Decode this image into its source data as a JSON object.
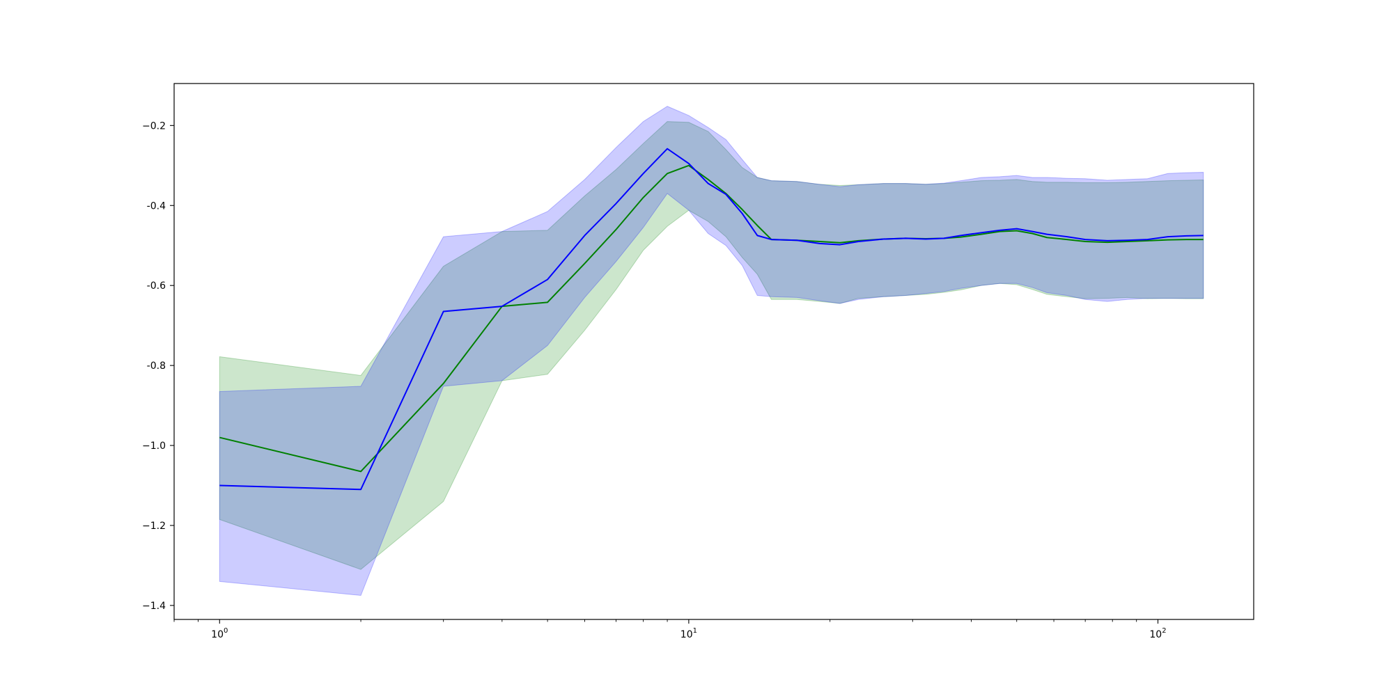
{
  "chart_data": {
    "type": "line",
    "title": "",
    "xlabel": "",
    "ylabel": "",
    "x_scale": "log",
    "xlim": [
      0.8,
      160
    ],
    "ylim": [
      -1.435,
      -0.095
    ],
    "grid": false,
    "legend": null,
    "x_ticks": [
      {
        "value": 1,
        "base": "10",
        "exp": "0"
      },
      {
        "value": 10,
        "base": "10",
        "exp": "1"
      },
      {
        "value": 100,
        "base": "10",
        "exp": "2"
      }
    ],
    "y_ticks": [
      {
        "value": -0.2,
        "label": "−0.2"
      },
      {
        "value": -0.4,
        "label": "-0.4"
      },
      {
        "value": -0.6,
        "label": "-0.6"
      },
      {
        "value": -0.8,
        "label": "-0.8"
      },
      {
        "value": -1.0,
        "label": "−1.0"
      },
      {
        "value": -1.2,
        "label": "−1.2"
      },
      {
        "value": -1.4,
        "label": "−1.4"
      }
    ],
    "series": [
      {
        "color": "#008000",
        "band_color": "#008000",
        "band_opacity": 0.2,
        "points": [
          [
            1,
            -0.98,
            -1.185,
            -0.778
          ],
          [
            2,
            -1.065,
            -1.31,
            -0.825
          ],
          [
            3,
            -0.845,
            -1.14,
            -0.552
          ],
          [
            4,
            -0.652,
            -0.838,
            -0.465
          ],
          [
            5,
            -0.642,
            -0.822,
            -0.462
          ],
          [
            6,
            -0.545,
            -0.712,
            -0.376
          ],
          [
            7,
            -0.46,
            -0.61,
            -0.31
          ],
          [
            8,
            -0.38,
            -0.512,
            -0.245
          ],
          [
            9,
            -0.32,
            -0.452,
            -0.19
          ],
          [
            10,
            -0.3,
            -0.412,
            -0.192
          ],
          [
            11,
            -0.335,
            -0.44,
            -0.215
          ],
          [
            12,
            -0.37,
            -0.478,
            -0.26
          ],
          [
            13,
            -0.41,
            -0.53,
            -0.305
          ],
          [
            14,
            -0.45,
            -0.572,
            -0.33
          ],
          [
            15,
            -0.485,
            -0.635,
            -0.338
          ],
          [
            17,
            -0.487,
            -0.635,
            -0.34
          ],
          [
            19,
            -0.49,
            -0.64,
            -0.347
          ],
          [
            21,
            -0.493,
            -0.645,
            -0.35
          ],
          [
            23,
            -0.488,
            -0.632,
            -0.348
          ],
          [
            26,
            -0.484,
            -0.628,
            -0.345
          ],
          [
            29,
            -0.482,
            -0.625,
            -0.345
          ],
          [
            32,
            -0.483,
            -0.622,
            -0.347
          ],
          [
            35,
            -0.482,
            -0.617,
            -0.345
          ],
          [
            38,
            -0.479,
            -0.611,
            -0.342
          ],
          [
            42,
            -0.472,
            -0.6,
            -0.338
          ],
          [
            46,
            -0.465,
            -0.595,
            -0.337
          ],
          [
            50,
            -0.463,
            -0.598,
            -0.335
          ],
          [
            54,
            -0.47,
            -0.61,
            -0.34
          ],
          [
            58,
            -0.48,
            -0.622,
            -0.342
          ],
          [
            64,
            -0.485,
            -0.628,
            -0.342
          ],
          [
            70,
            -0.49,
            -0.633,
            -0.343
          ],
          [
            78,
            -0.492,
            -0.632,
            -0.343
          ],
          [
            86,
            -0.49,
            -0.63,
            -0.342
          ],
          [
            95,
            -0.488,
            -0.633,
            -0.34
          ],
          [
            105,
            -0.486,
            -0.632,
            -0.338
          ],
          [
            115,
            -0.485,
            -0.633,
            -0.337
          ],
          [
            125,
            -0.485,
            -0.633,
            -0.336
          ]
        ]
      },
      {
        "color": "#0000ff",
        "band_color": "#0000ff",
        "band_opacity": 0.2,
        "points": [
          [
            1,
            -1.1,
            -1.34,
            -0.865
          ],
          [
            2,
            -1.11,
            -1.375,
            -0.852
          ],
          [
            3,
            -0.665,
            -0.852,
            -0.478
          ],
          [
            4,
            -0.652,
            -0.838,
            -0.465
          ],
          [
            5,
            -0.585,
            -0.75,
            -0.415
          ],
          [
            6,
            -0.475,
            -0.63,
            -0.335
          ],
          [
            7,
            -0.395,
            -0.54,
            -0.255
          ],
          [
            8,
            -0.32,
            -0.455,
            -0.19
          ],
          [
            9,
            -0.258,
            -0.37,
            -0.152
          ],
          [
            10,
            -0.295,
            -0.412,
            -0.175
          ],
          [
            11,
            -0.345,
            -0.47,
            -0.205
          ],
          [
            12,
            -0.372,
            -0.5,
            -0.235
          ],
          [
            13,
            -0.42,
            -0.55,
            -0.285
          ],
          [
            14,
            -0.475,
            -0.625,
            -0.33
          ],
          [
            15,
            -0.485,
            -0.628,
            -0.338
          ],
          [
            17,
            -0.487,
            -0.63,
            -0.34
          ],
          [
            19,
            -0.495,
            -0.638,
            -0.347
          ],
          [
            21,
            -0.498,
            -0.645,
            -0.353
          ],
          [
            23,
            -0.49,
            -0.635,
            -0.348
          ],
          [
            26,
            -0.484,
            -0.628,
            -0.345
          ],
          [
            29,
            -0.482,
            -0.625,
            -0.345
          ],
          [
            32,
            -0.484,
            -0.62,
            -0.347
          ],
          [
            35,
            -0.482,
            -0.615,
            -0.344
          ],
          [
            38,
            -0.475,
            -0.607,
            -0.338
          ],
          [
            42,
            -0.468,
            -0.6,
            -0.33
          ],
          [
            46,
            -0.462,
            -0.595,
            -0.328
          ],
          [
            50,
            -0.458,
            -0.595,
            -0.325
          ],
          [
            54,
            -0.465,
            -0.605,
            -0.33
          ],
          [
            58,
            -0.472,
            -0.618,
            -0.33
          ],
          [
            64,
            -0.478,
            -0.625,
            -0.332
          ],
          [
            70,
            -0.485,
            -0.635,
            -0.333
          ],
          [
            78,
            -0.488,
            -0.64,
            -0.337
          ],
          [
            86,
            -0.487,
            -0.635,
            -0.335
          ],
          [
            95,
            -0.485,
            -0.632,
            -0.333
          ],
          [
            105,
            -0.478,
            -0.632,
            -0.32
          ],
          [
            115,
            -0.476,
            -0.632,
            -0.318
          ],
          [
            125,
            -0.475,
            -0.632,
            -0.317
          ]
        ]
      }
    ]
  }
}
